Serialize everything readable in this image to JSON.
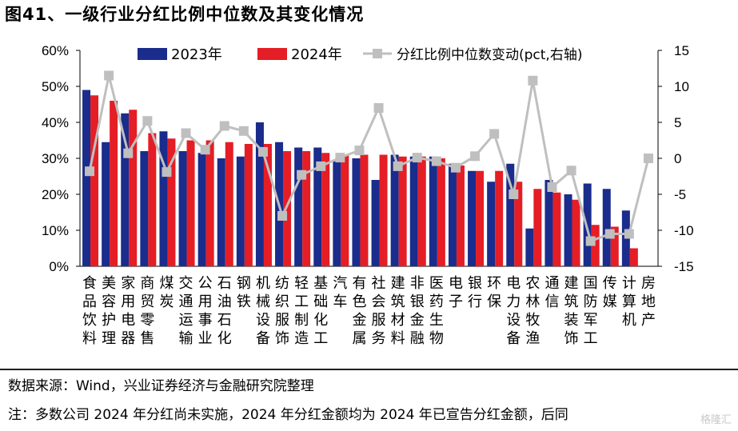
{
  "title": "图41、一级行业分红比例中位数及其变化情况",
  "source": "数据来源：Wind，兴业证券经济与金融研究院整理",
  "note": "注：多数公司 2024 年分红尚未实施，2024 年分红金额均为 2024 年已宣告分红金额，后同",
  "watermark": "格隆汇",
  "chart_data": {
    "type": "bar",
    "categories": [
      "食品饮料",
      "美容护理",
      "家用电器",
      "商贸零售",
      "煤炭",
      "交通运输",
      "公用事业",
      "石油石化",
      "钢铁",
      "机械设备",
      "纺织服饰",
      "轻工制造",
      "基础化工",
      "汽车",
      "有色金属",
      "社会服务",
      "建筑材料",
      "非银金融",
      "医药生物",
      "电子",
      "银行",
      "环保",
      "电力设备",
      "农林牧渔",
      "通信",
      "建筑装饰",
      "国防军工",
      "传媒",
      "计算机",
      "房地产"
    ],
    "series": [
      {
        "name": "2023年",
        "type": "bar",
        "axis": "left",
        "color": "#1a2c8c",
        "values": [
          49,
          34.5,
          42.5,
          32,
          37.5,
          32,
          31.5,
          30,
          30.5,
          40,
          34.5,
          33,
          33,
          29.5,
          30,
          24,
          31,
          30.5,
          30.5,
          28.5,
          26.5,
          23.5,
          28.5,
          10.5,
          24,
          20,
          23,
          21.5,
          15.5,
          0
        ]
      },
      {
        "name": "2024年",
        "type": "bar",
        "axis": "left",
        "color": "#e51d25",
        "values": [
          47.5,
          46,
          43.5,
          37,
          35.5,
          35,
          35,
          34.5,
          34,
          34,
          32,
          32,
          31.5,
          31,
          31,
          31,
          30.5,
          30.5,
          30,
          28,
          26.5,
          26.5,
          23.5,
          21.5,
          20.5,
          18.5,
          11.5,
          11,
          5,
          0
        ]
      },
      {
        "name": "分红比例中位数变动(pct,右轴)",
        "type": "line",
        "axis": "right",
        "color": "#bfbfbf",
        "values": [
          -1.8,
          11.5,
          0.7,
          5.2,
          -1.9,
          3.5,
          1.2,
          4.5,
          3.8,
          0.9,
          -8,
          -2.3,
          -1.1,
          0.1,
          1.1,
          7,
          -1.1,
          0.1,
          -0.4,
          -1.3,
          0.3,
          3.4,
          -5,
          10.8,
          -4,
          -1.7,
          -11.5,
          -10.5,
          -10.5,
          0
        ]
      }
    ],
    "y_left": {
      "min": 0,
      "max": 60,
      "ticks": [
        "0%",
        "10%",
        "20%",
        "30%",
        "40%",
        "50%",
        "60%"
      ]
    },
    "y_right": {
      "min": -15,
      "max": 15,
      "ticks": [
        "-15",
        "-10",
        "-5",
        "0",
        "5",
        "10",
        "15"
      ]
    },
    "legend_position": "top",
    "grid": false
  }
}
